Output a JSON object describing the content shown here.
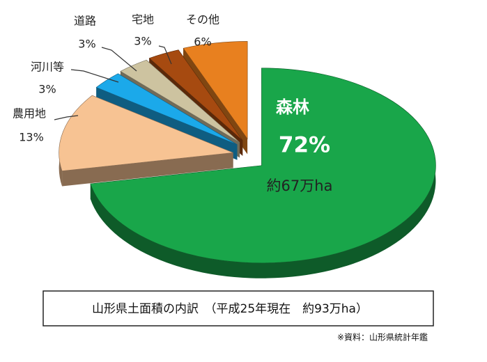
{
  "chart_data": {
    "type": "pie",
    "categories": [
      "森林",
      "農用地",
      "河川等",
      "道路",
      "宅地",
      "その他"
    ],
    "values": [
      72,
      13,
      3,
      3,
      3,
      6
    ],
    "value_labels": [
      "72%",
      "13%",
      "3%",
      "3%",
      "3%",
      "6%"
    ],
    "colors": [
      "#19a64a",
      "#f7c393",
      "#1ba9ea",
      "#cdc3a0",
      "#a64a10",
      "#e8801f"
    ],
    "annotation": "約67万ha",
    "title": "山形県土面積の内訳　（平成25年現在　約93万ha）",
    "source": "※資料：山形県統計年鑑"
  }
}
